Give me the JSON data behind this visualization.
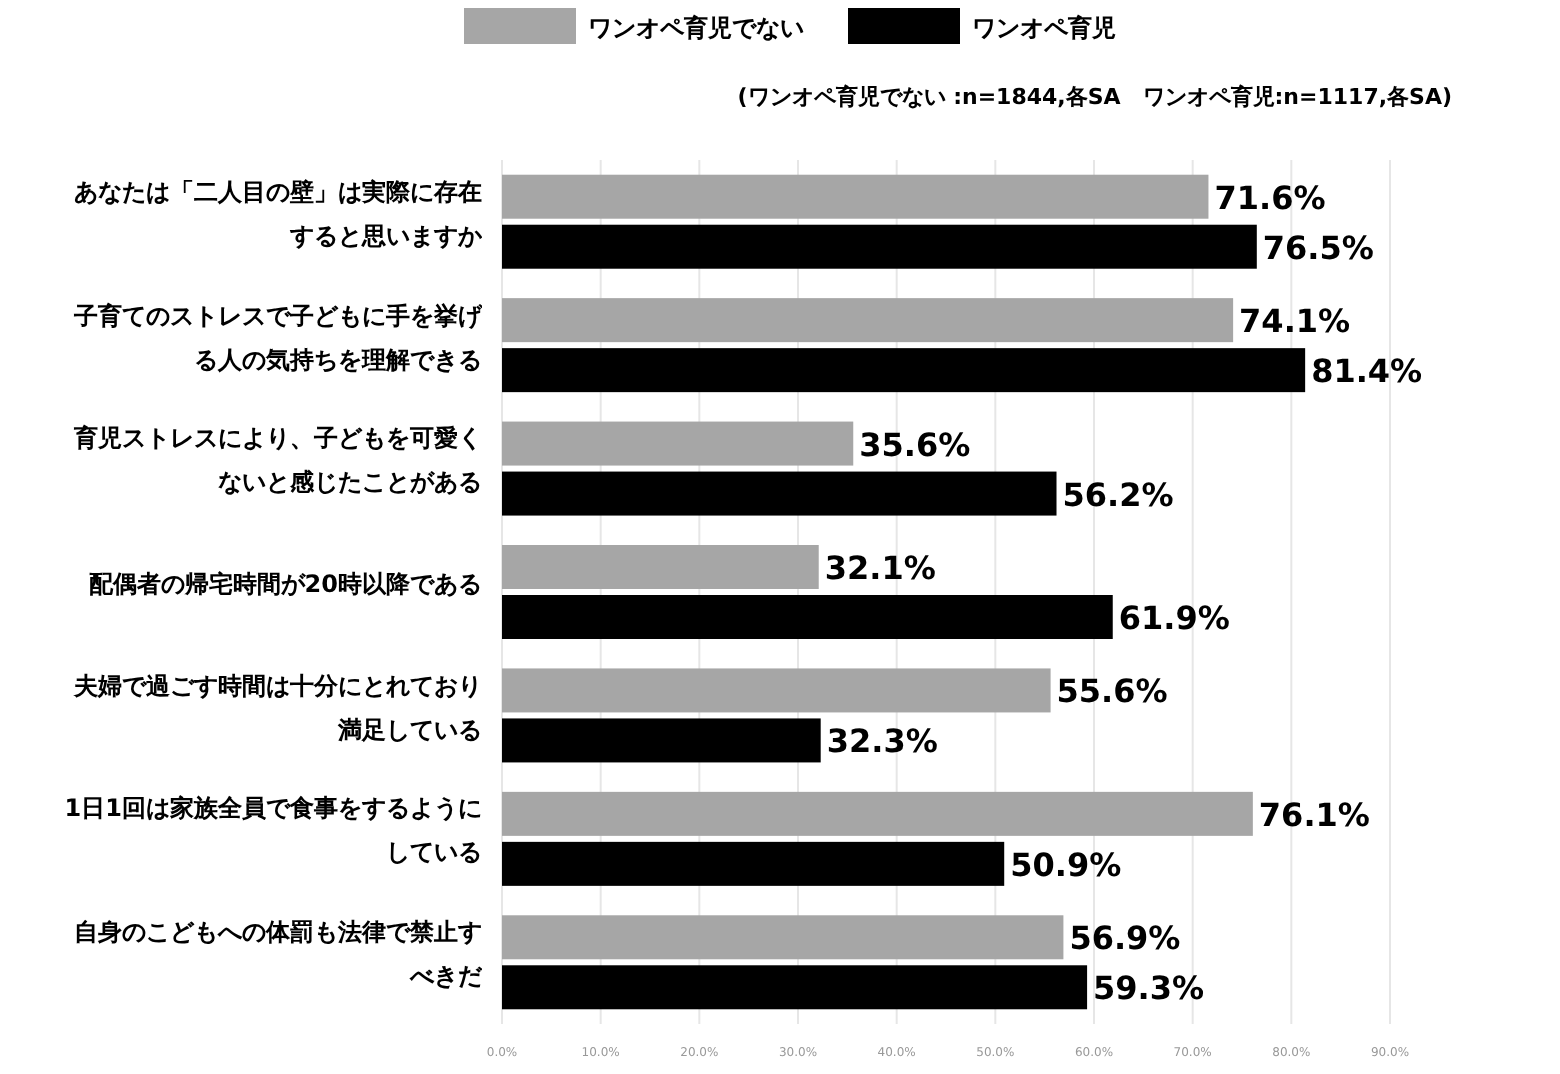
{
  "chart_data": {
    "type": "bar",
    "orientation": "horizontal",
    "categories": [
      "あなたは「二人目の壁」は実際に存在すると思いますか",
      "子育てのストレスで子どもに手を挙げる人の気持ちを理解できる",
      "育児ストレスにより、子どもを可愛くないと感じたことがある",
      "配偶者の帰宅時間が20時以降である",
      "夫婦で過ごす時間は十分にとれており満足している",
      "1日1回は家族全員で食事をするようにしている",
      "自身のこどもへの体罰も法律で禁止すべきだ"
    ],
    "series": [
      {
        "name": "ワンオペ育児でない",
        "color": "#a6a6a6",
        "values": [
          71.6,
          74.1,
          35.6,
          32.1,
          55.6,
          76.1,
          56.9
        ],
        "value_labels": [
          "71.6%",
          "74.1%",
          "35.6%",
          "32.1%",
          "55.6%",
          "76.1%",
          "56.9%"
        ]
      },
      {
        "name": "ワンオペ育児",
        "color": "#000000",
        "values": [
          76.5,
          81.4,
          56.2,
          61.9,
          32.3,
          50.9,
          59.3
        ],
        "value_labels": [
          "76.5%",
          "81.4%",
          "56.2%",
          "61.9%",
          "32.3%",
          "50.9%",
          "59.3%"
        ]
      }
    ],
    "xlim": [
      0,
      90
    ],
    "xticks": [
      {
        "value": 0,
        "label": "0.0%"
      },
      {
        "value": 10,
        "label": "10.0%"
      },
      {
        "value": 20,
        "label": "20.0%"
      },
      {
        "value": 30,
        "label": "30.0%"
      },
      {
        "value": 40,
        "label": "40.0%"
      },
      {
        "value": 50,
        "label": "50.0%"
      },
      {
        "value": 60,
        "label": "60.0%"
      },
      {
        "value": 70,
        "label": "70.0%"
      },
      {
        "value": 80,
        "label": "80.0%"
      },
      {
        "value": 90,
        "label": "90.0%"
      }
    ],
    "grid": "x",
    "legend": "top",
    "annotations": [
      "(ワンオペ育児でない :n=1844,各SA　ワンオペ育児:n=1117,各SA)"
    ]
  }
}
